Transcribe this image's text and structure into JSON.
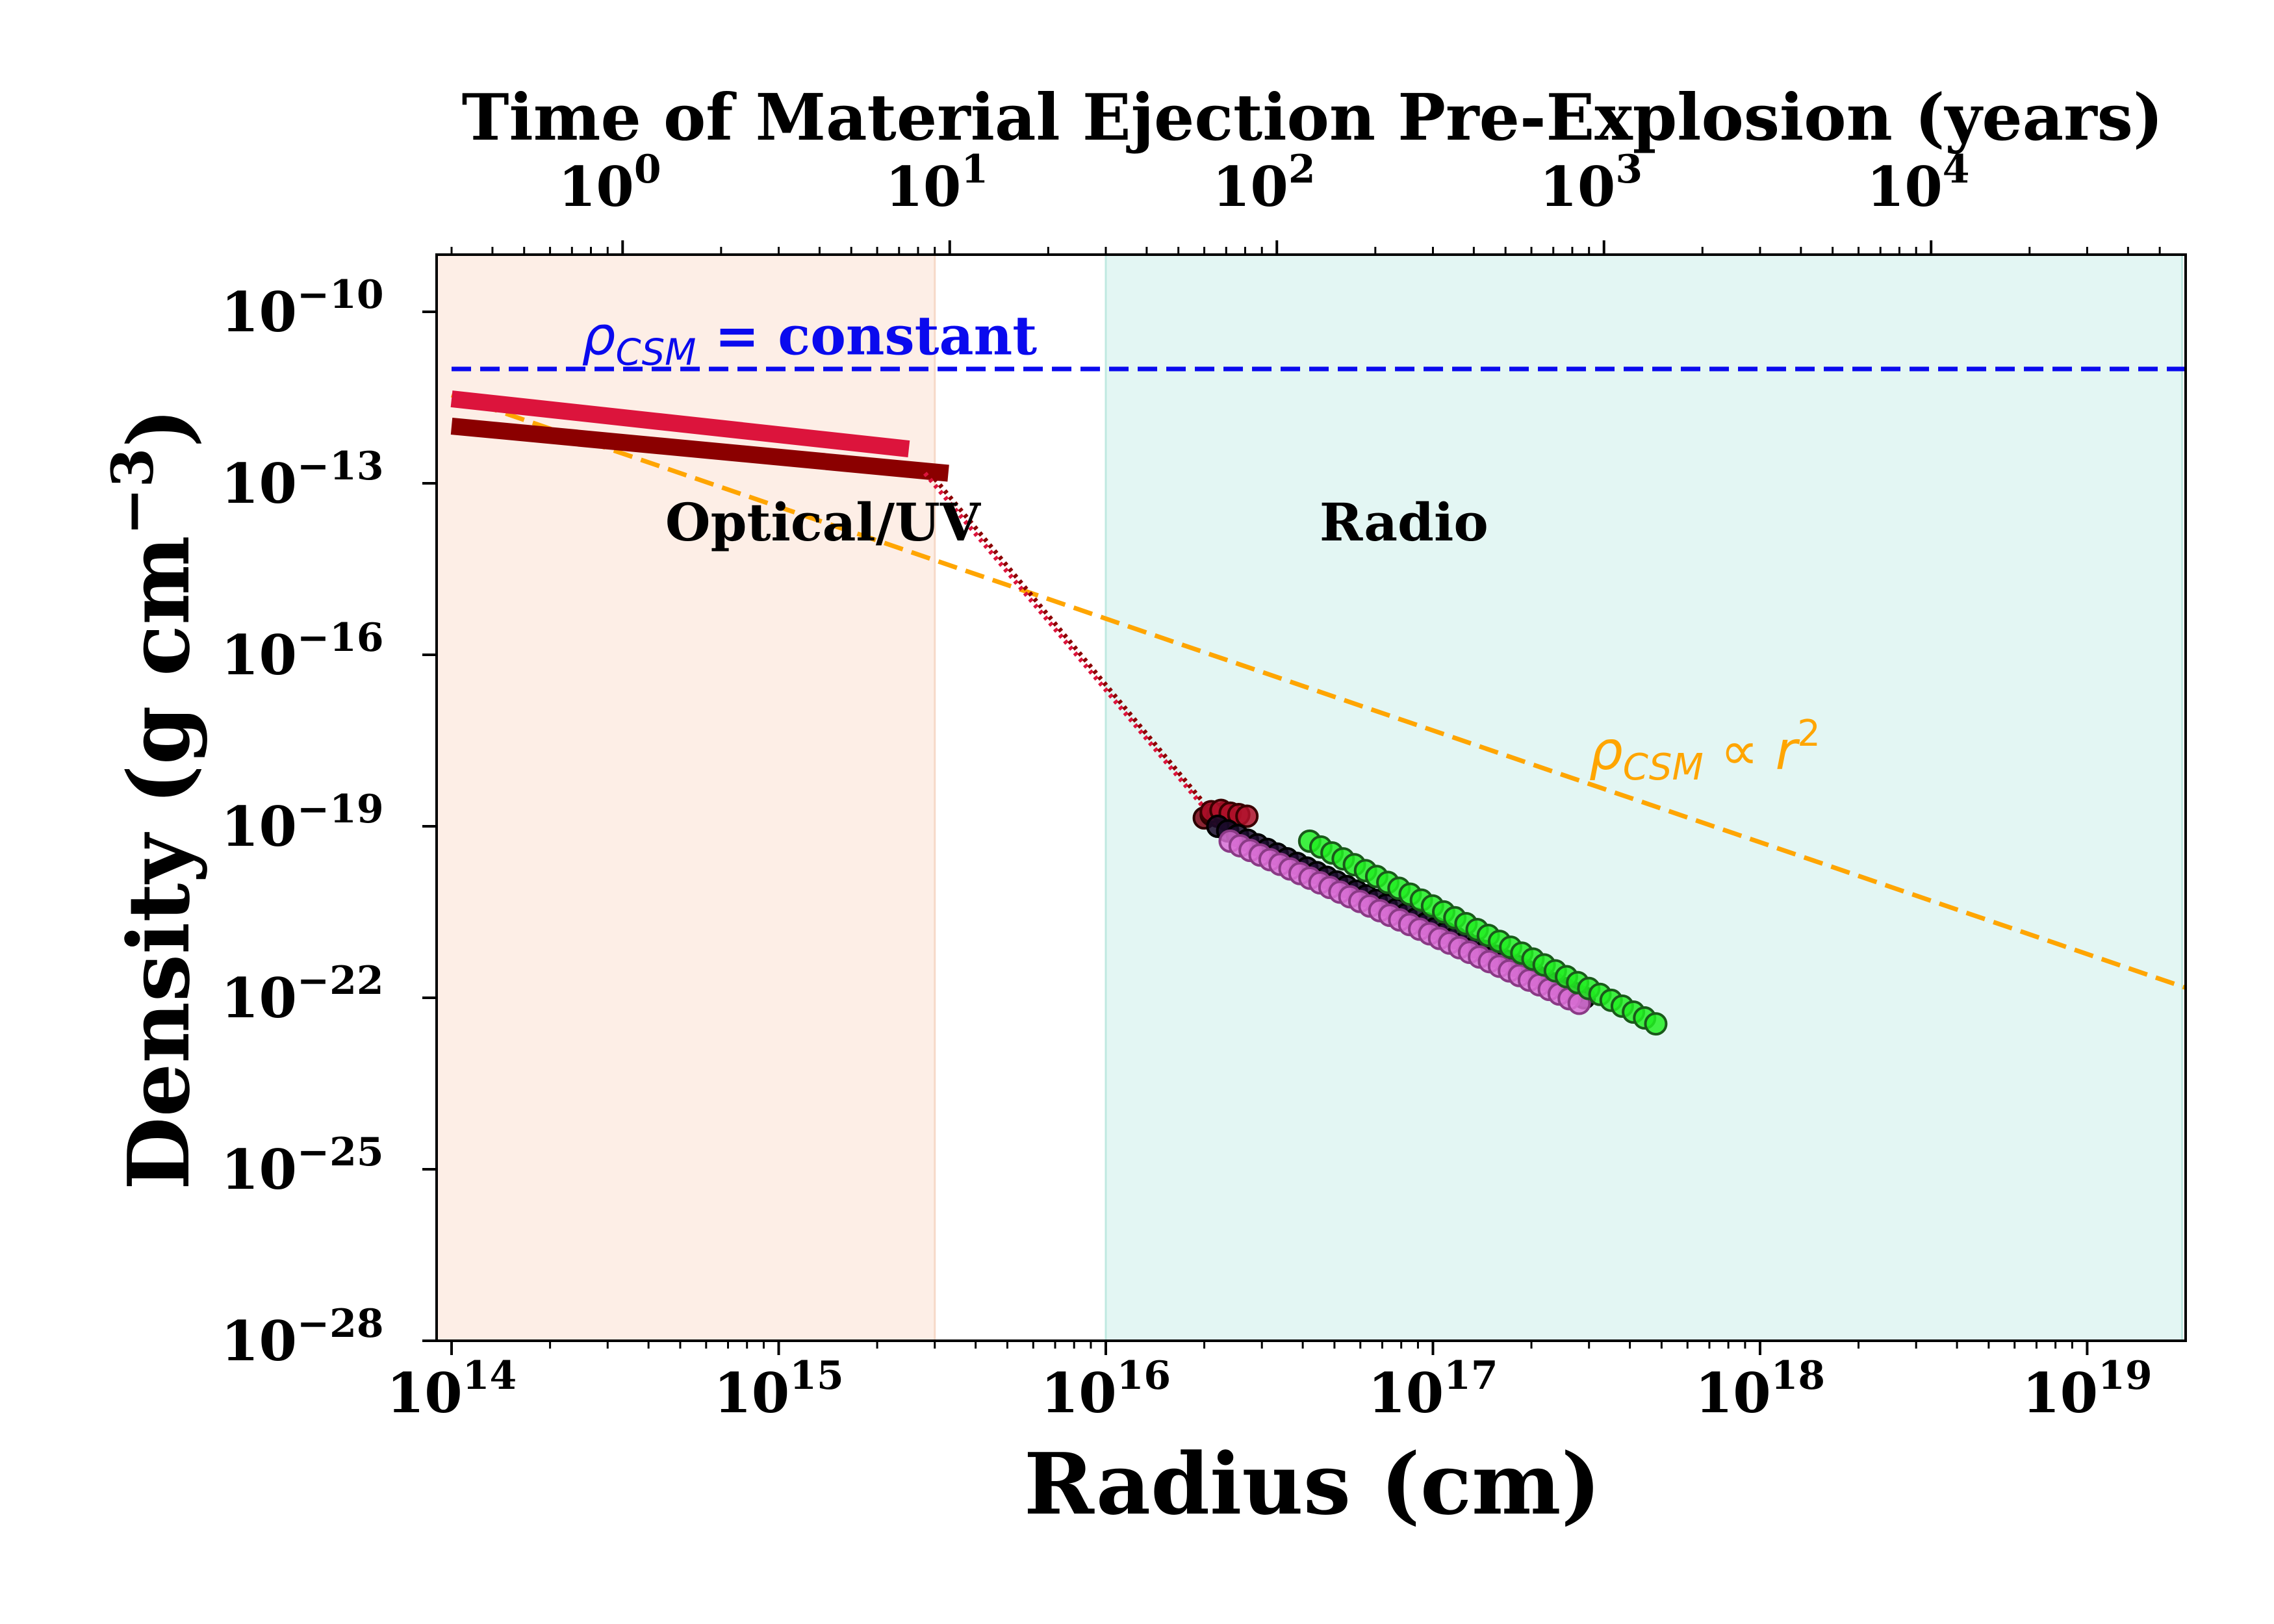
{
  "chart_data": {
    "type": "scatter",
    "xlabel": "Radius (cm)",
    "ylabel": "Density (g cm",
    "ylabel_sup": "−3",
    "ylabel_close": ")",
    "top_xlabel": "Time of Material Ejection Pre-Explosion (years)",
    "xscale": "log",
    "yscale": "log",
    "xlim": [
      90000000000000.0,
      2e+19
    ],
    "ylim": [
      1e-28,
      1e-09
    ],
    "top_xlim": [
      0.27,
      60000
    ],
    "x_ticks": [
      {
        "value": 100000000000000.0,
        "base": "10",
        "exp": "14"
      },
      {
        "value": 1000000000000000.0,
        "base": "10",
        "exp": "15"
      },
      {
        "value": 1e+16,
        "base": "10",
        "exp": "16"
      },
      {
        "value": 1e+17,
        "base": "10",
        "exp": "17"
      },
      {
        "value": 1e+18,
        "base": "10",
        "exp": "18"
      },
      {
        "value": 1e+19,
        "base": "10",
        "exp": "19"
      }
    ],
    "y_ticks": [
      {
        "value": 1e-10,
        "base": "10",
        "exp": "−10"
      },
      {
        "value": 1e-13,
        "base": "10",
        "exp": "−13"
      },
      {
        "value": 1e-16,
        "base": "10",
        "exp": "−16"
      },
      {
        "value": 1e-19,
        "base": "10",
        "exp": "−19"
      },
      {
        "value": 1e-22,
        "base": "10",
        "exp": "−22"
      },
      {
        "value": 1e-25,
        "base": "10",
        "exp": "−25"
      },
      {
        "value": 1e-28,
        "base": "10",
        "exp": "−28"
      }
    ],
    "top_ticks": [
      {
        "value": 1,
        "base": "10",
        "exp": "0"
      },
      {
        "value": 10,
        "base": "10",
        "exp": "1"
      },
      {
        "value": 100,
        "base": "10",
        "exp": "2"
      },
      {
        "value": 1000,
        "base": "10",
        "exp": "3"
      },
      {
        "value": 10000,
        "base": "10",
        "exp": "4"
      }
    ],
    "regions": [
      {
        "name": "Optical/UV",
        "x_range": [
          90000000000000.0,
          3000000000000000.0
        ],
        "color": "#fdeee6",
        "edge": "#f6d8c8",
        "label_at": [
          450000000000000.0,
          1e-14
        ]
      },
      {
        "name": "Radio",
        "x_range": [
          1e+16,
          1.95e+19
        ],
        "color": "#e3f6f3",
        "edge": "#bfe9e1",
        "label_at": [
          4.5e+16,
          1e-14
        ]
      }
    ],
    "reference_lines": [
      {
        "name": "constant",
        "label_pre": "ρ",
        "label_sub": "CSM",
        "label_post": " = constant",
        "color": "#0a0aee",
        "x": [
          100000000000000.0,
          2e+19
        ],
        "y": [
          1e-11,
          1e-11
        ],
        "style": "dashed",
        "label_at": [
          250000000000000.0,
          1.8e-11
        ]
      },
      {
        "name": "r2",
        "label_pre": "ρ",
        "label_sub": "CSM",
        "label_post": "  ∝ r",
        "label_sup": "2",
        "color": "#ffa500",
        "x": [
          100000000000000.0,
          2e+19
        ],
        "y": [
          3.5e-12,
          1.5e-22
        ],
        "style": "dashed",
        "label_at": [
          3e+17,
          1e-18
        ]
      }
    ],
    "optical_bands": [
      {
        "color": "#dc143c",
        "x": [
          100000000000000.0,
          2500000000000000.0
        ],
        "y": [
          3e-12,
          4e-13
        ]
      },
      {
        "color": "#8b0000",
        "x": [
          100000000000000.0,
          3300000000000000.0
        ],
        "y": [
          1e-12,
          1.5e-13
        ]
      }
    ],
    "connectors": [
      {
        "color": "#dc143c",
        "x": [
          2800000000000000.0,
          2.1e+16
        ],
        "y": [
          1.5e-13,
          1.5e-19
        ]
      },
      {
        "color": "#8b0000",
        "x": [
          3000000000000000.0,
          2.2e+16
        ],
        "y": [
          1.2e-13,
          1.3e-19
        ]
      }
    ],
    "series": [
      {
        "color": "#7a0010",
        "edge": "#2b0000",
        "x": [
          2e+16,
          2.1e+16,
          2.2e+16,
          2.3e+16,
          2.35e+16
        ],
        "y": [
          1.4e-19,
          1.6e-19,
          1.5e-19,
          1.7e-19,
          1.3e-19
        ]
      },
      {
        "color": "#b0102a",
        "edge": "#3a0000",
        "x": [
          2.1e+16,
          2.25e+16,
          2.4e+16,
          2.55e+16,
          2.7e+16
        ],
        "y": [
          1.8e-19,
          1.9e-19,
          1.7e-19,
          1.6e-19,
          1.5e-19
        ]
      },
      {
        "color": "#1a0a2a",
        "edge": "#000000",
        "x_range": [
          2.2e+16,
          2.9e+17
        ],
        "y_range": [
          1e-19,
          1e-22
        ],
        "n": 38
      },
      {
        "color": "#da70d6",
        "edge": "#8a3a86",
        "x_range": [
          2.4e+16,
          2.8e+17
        ],
        "y_range": [
          5.5e-20,
          8e-23
        ],
        "n": 36
      },
      {
        "color": "#22ee22",
        "edge": "#1a5a1a",
        "x_range": [
          4.2e+16,
          4.8e+17
        ],
        "y_range": [
          5.5e-20,
          3.5e-23
        ],
        "n": 32
      }
    ]
  }
}
